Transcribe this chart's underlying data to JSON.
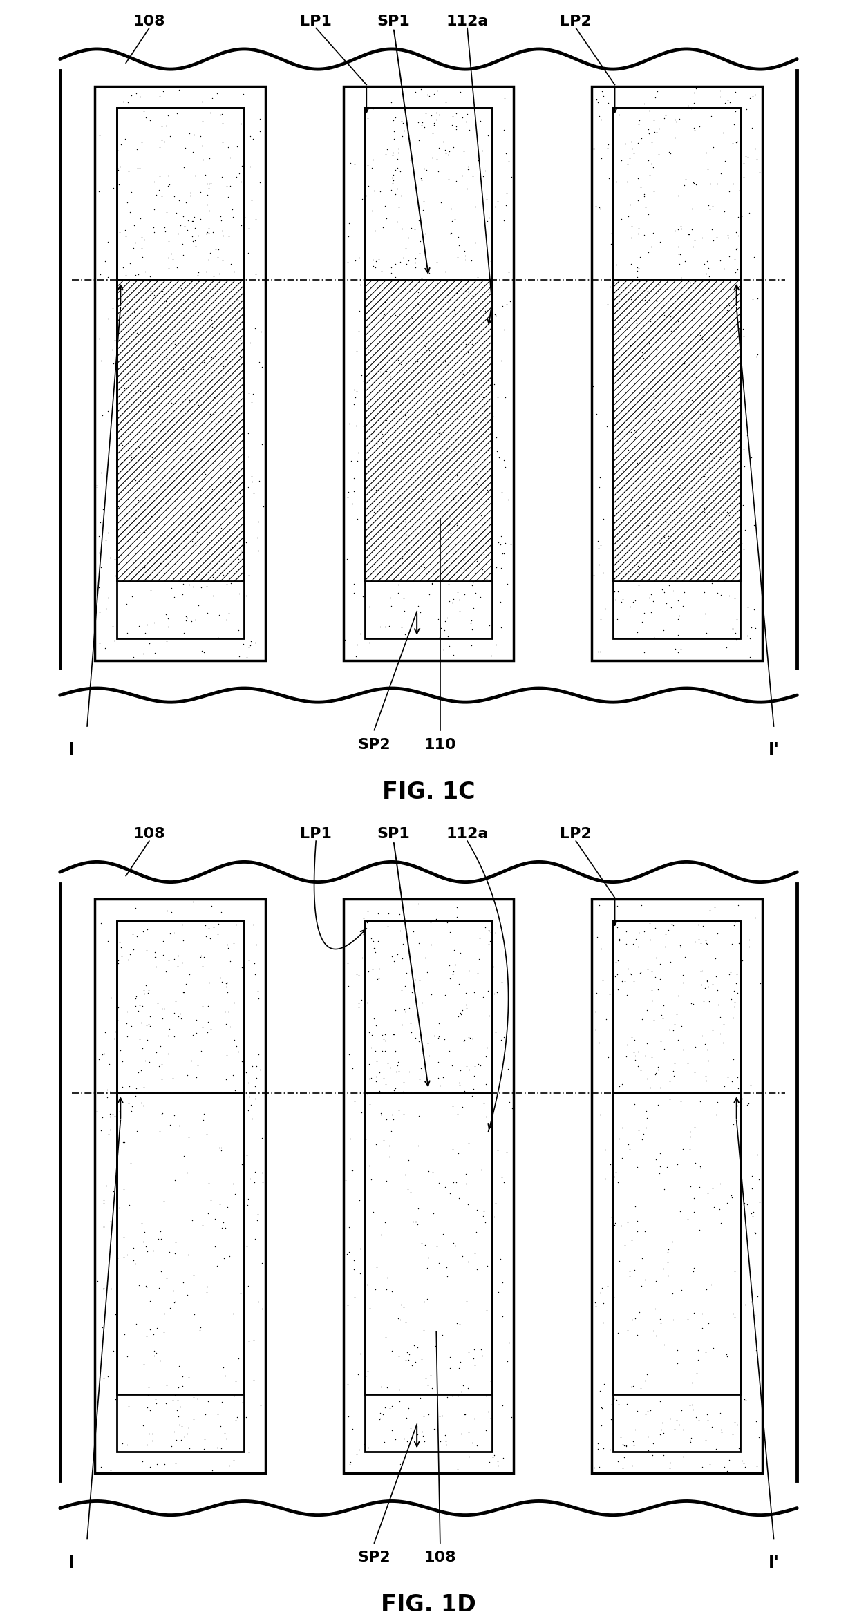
{
  "fig_width": 12.4,
  "fig_height": 23.46,
  "bg_color": "#ffffff",
  "fig1c_title": "FIG. 1C",
  "fig1d_title": "FIG. 1D",
  "fig1c_labels_top": [
    "108",
    "LP1",
    "SP1",
    "112a",
    "LP2"
  ],
  "fig1d_labels_top": [
    "108",
    "LP1",
    "SP1",
    "112a",
    "LP2"
  ],
  "fig1c_labels_bot": [
    "SP2",
    "110"
  ],
  "fig1d_labels_bot": [
    "SP2",
    "108"
  ],
  "label_I": "I",
  "label_Ip": "I'"
}
